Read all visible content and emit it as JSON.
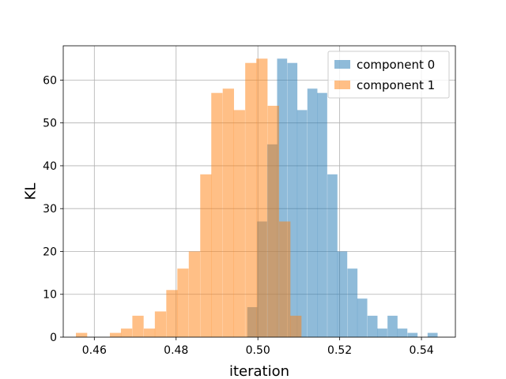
{
  "chart_data": {
    "type": "bar",
    "subtype": "histogram-overlay",
    "xlabel": "iteration",
    "ylabel": "KL",
    "xlim": [
      0.4524,
      0.5483
    ],
    "ylim": [
      0,
      68
    ],
    "x_ticks": [
      0.46,
      0.48,
      0.5,
      0.52,
      0.54
    ],
    "x_tick_labels": [
      "0.46",
      "0.48",
      "0.50",
      "0.52",
      "0.54"
    ],
    "y_ticks": [
      0,
      10,
      20,
      30,
      40,
      50,
      60
    ],
    "y_tick_labels": [
      "0",
      "10",
      "20",
      "30",
      "40",
      "50",
      "60"
    ],
    "grid": true,
    "legend_position": "top-right",
    "series": [
      {
        "name": "component 0",
        "color": "#1f77b4",
        "opacity": 0.5,
        "bin_width": 0.00245,
        "bin_starts": [
          0.4974,
          0.4998,
          0.5023,
          0.5047,
          0.5072,
          0.5096,
          0.5121,
          0.5145,
          0.517,
          0.5194,
          0.5219,
          0.5243,
          0.5268,
          0.5292,
          0.5317,
          0.5341,
          0.5366,
          0.539,
          0.5415
        ],
        "counts": [
          7,
          27,
          45,
          65,
          64,
          53,
          58,
          57,
          38,
          20,
          16,
          9,
          5,
          2,
          5,
          2,
          1,
          0,
          1
        ]
      },
      {
        "name": "component 1",
        "color": "#ff7f0e",
        "opacity": 0.5,
        "bin_width": 0.00276,
        "bin_starts": [
          0.4555,
          0.4583,
          0.461,
          0.4638,
          0.4665,
          0.4693,
          0.4721,
          0.4748,
          0.4776,
          0.4803,
          0.4831,
          0.4859,
          0.4886,
          0.4914,
          0.4941,
          0.4969,
          0.4996,
          0.5024,
          0.5052,
          0.5079
        ],
        "counts": [
          1,
          0,
          0,
          1,
          2,
          5,
          2,
          6,
          11,
          16,
          20,
          38,
          57,
          58,
          53,
          64,
          65,
          54,
          27,
          5
        ]
      }
    ],
    "overlap_note": ""
  }
}
